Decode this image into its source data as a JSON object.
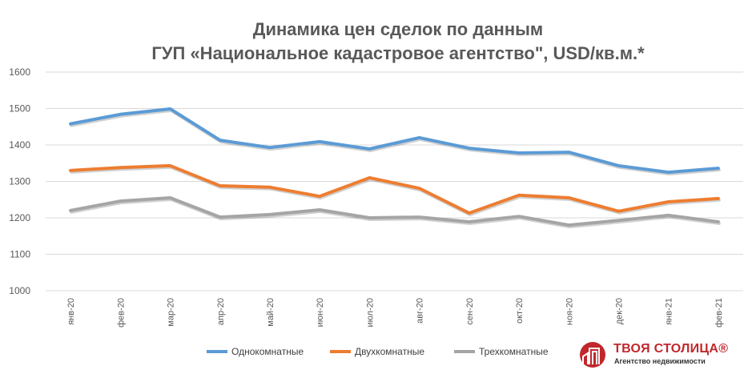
{
  "chart_data": {
    "type": "line",
    "title_line1": "Динамика цен сделок по данным",
    "title_line2": "ГУП «Национальное кадастровое агентство\", USD/кв.м.*",
    "categories": [
      "янв-20",
      "фев-20",
      "мар-20",
      "апр-20",
      "май-20",
      "июн-20",
      "июл-20",
      "авг-20",
      "сен-20",
      "окт-20",
      "ноя-20",
      "дек-20",
      "янв-21",
      "фев-21"
    ],
    "ylim": [
      1000,
      1600
    ],
    "yticks": [
      "1000",
      "1100",
      "1200",
      "1300",
      "1400",
      "1500",
      "1600"
    ],
    "grid": true,
    "legend_position": "bottom",
    "series": [
      {
        "name": "Однокомнатные",
        "color": "#5b9bd5",
        "values": [
          1458,
          1484,
          1499,
          1413,
          1393,
          1409,
          1389,
          1420,
          1391,
          1378,
          1380,
          1343,
          1325,
          1336
        ]
      },
      {
        "name": "Двухкомнатные",
        "color": "#ed7d31",
        "values": [
          1330,
          1338,
          1343,
          1288,
          1284,
          1259,
          1310,
          1281,
          1213,
          1262,
          1255,
          1218,
          1244,
          1253
        ]
      },
      {
        "name": "Трехкомнатные",
        "color": "#a5a5a5",
        "values": [
          1220,
          1246,
          1255,
          1202,
          1209,
          1222,
          1200,
          1202,
          1189,
          1204,
          1180,
          1193,
          1207,
          1189
        ]
      }
    ]
  },
  "logo": {
    "brand": "ТВОЯ СТОЛИЦА®",
    "sub": "Агентство недвижимости",
    "color": "#c0282d"
  }
}
